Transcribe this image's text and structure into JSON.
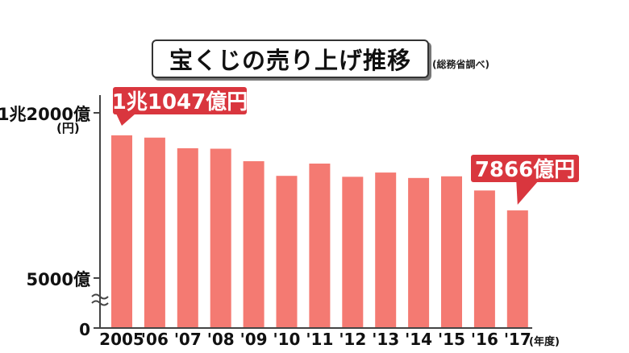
{
  "title": "宝くじの売り上げ推移",
  "source": "(総務省調べ)",
  "chart_data": {
    "type": "bar",
    "title": "宝くじの売り上げ推移",
    "categories": [
      "2005",
      "'06",
      "'07",
      "'08",
      "'09",
      "'10",
      "'11",
      "'12",
      "'13",
      "'14",
      "'15",
      "'16",
      "'17"
    ],
    "values": [
      11047,
      10950,
      10500,
      10480,
      9950,
      9330,
      9850,
      9290,
      9470,
      9240,
      9310,
      8710,
      7866
    ],
    "x_unit_label": "(年度)",
    "y_unit_label": "(円)",
    "y_ticks": [
      {
        "value": 12000,
        "label": "1兆2000億"
      },
      {
        "value": 5000,
        "label": "5000億"
      },
      {
        "value": 0,
        "label": "0"
      }
    ],
    "y_axis_break": true,
    "ylim": [
      5000,
      12000
    ],
    "annotations": [
      {
        "category": "2005",
        "text": "1兆1047億円"
      },
      {
        "category": "'17",
        "text": "7866億円"
      }
    ],
    "bar_color": "#f47a72",
    "callout_color": "#d9363e",
    "grid": false,
    "legend": "none"
  }
}
